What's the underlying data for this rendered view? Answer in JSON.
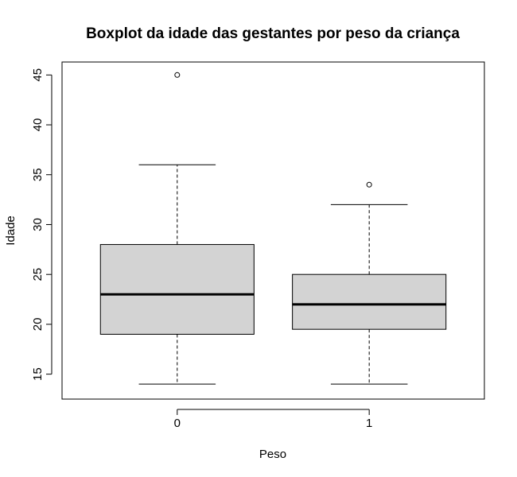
{
  "chart_data": {
    "type": "boxplot",
    "title": "Boxplot da idade das gestantes por peso da criança",
    "xlabel": "Peso",
    "ylabel": "Idade",
    "categories": [
      "0",
      "1"
    ],
    "ylim": [
      12.5,
      46.3
    ],
    "yticks": [
      15,
      20,
      25,
      30,
      35,
      40,
      45
    ],
    "grid": false,
    "boxes": [
      {
        "category": "0",
        "whisker_low": 14,
        "q1": 19,
        "median": 23,
        "q3": 28,
        "whisker_high": 36,
        "outliers": [
          45
        ]
      },
      {
        "category": "1",
        "whisker_low": 14,
        "q1": 19.5,
        "median": 22,
        "q3": 25,
        "whisker_high": 32,
        "outliers": [
          34
        ]
      }
    ],
    "box_fill": "#d3d3d3",
    "line_color": "#000000"
  }
}
